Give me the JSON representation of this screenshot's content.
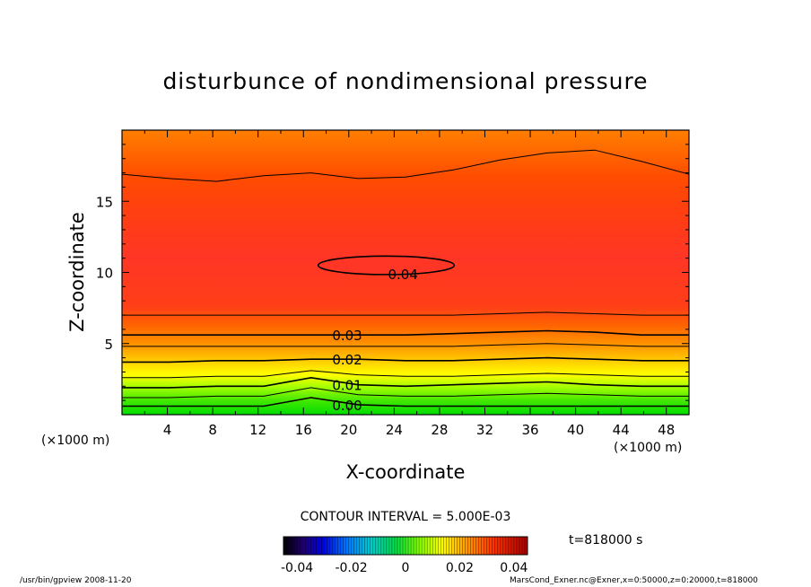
{
  "chart_data": {
    "type": "heatmap",
    "title": "disturbunce of nondimensional pressure",
    "xlabel": "X-coordinate",
    "ylabel": "Z-coordinate",
    "x_unit": "(×1000 m)",
    "x_unit_left": "(×1000 m)",
    "xlim": [
      0,
      50
    ],
    "ylim": [
      0,
      20
    ],
    "x_ticks": [
      4,
      8,
      12,
      16,
      20,
      24,
      28,
      32,
      36,
      40,
      44,
      48
    ],
    "y_ticks": [
      5,
      10,
      15
    ],
    "contour_interval_label": "CONTOUR INTERVAL = 5.000E-03",
    "time_label": "t=818000 s",
    "colorbar": {
      "range": [
        -0.045,
        0.045
      ],
      "tick_labels": [
        "-0.04",
        "-0.02",
        "0",
        "0.02",
        "0.04"
      ],
      "tick_values": [
        -0.04,
        -0.02,
        0,
        0.02,
        0.04
      ]
    },
    "contours": [
      {
        "level": 0.0,
        "label": "0.00",
        "z": [
          0.6,
          0.6,
          0.6,
          0.6,
          1.2,
          0.7,
          0.6,
          0.6,
          0.6,
          0.6,
          0.6,
          0.6,
          0.6
        ]
      },
      {
        "level": 0.005,
        "label": "",
        "z": [
          1.2,
          1.2,
          1.3,
          1.3,
          1.9,
          1.4,
          1.3,
          1.3,
          1.4,
          1.5,
          1.4,
          1.3,
          1.3
        ]
      },
      {
        "level": 0.01,
        "label": "0.01",
        "z": [
          1.9,
          1.9,
          2.0,
          2.0,
          2.6,
          2.1,
          2.0,
          2.1,
          2.2,
          2.3,
          2.1,
          2.0,
          2.0
        ]
      },
      {
        "level": 0.015,
        "label": "",
        "z": [
          2.6,
          2.6,
          2.7,
          2.7,
          3.1,
          2.8,
          2.7,
          2.7,
          2.8,
          2.9,
          2.8,
          2.7,
          2.7
        ]
      },
      {
        "level": 0.02,
        "label": "0.02",
        "z": [
          3.7,
          3.7,
          3.8,
          3.8,
          3.9,
          3.9,
          3.8,
          3.8,
          3.9,
          4.0,
          3.9,
          3.8,
          3.8
        ]
      },
      {
        "level": 0.025,
        "label": "",
        "z": [
          4.8,
          4.8,
          4.8,
          4.8,
          4.8,
          4.8,
          4.8,
          4.8,
          4.9,
          5.0,
          4.9,
          4.8,
          4.8
        ]
      },
      {
        "level": 0.03,
        "label": "0.03",
        "z": [
          5.6,
          5.6,
          5.6,
          5.6,
          5.6,
          5.6,
          5.6,
          5.7,
          5.8,
          5.9,
          5.8,
          5.6,
          5.6
        ]
      },
      {
        "level": 0.035,
        "label": "",
        "z": [
          7.0,
          7.0,
          7.0,
          7.0,
          7.0,
          7.0,
          7.0,
          7.0,
          7.1,
          7.2,
          7.1,
          7.0,
          7.0
        ]
      },
      {
        "level": 0.035,
        "label": "",
        "z": [
          16.9,
          16.6,
          16.4,
          16.8,
          17.0,
          16.6,
          16.7,
          17.2,
          17.9,
          18.4,
          18.6,
          17.8,
          16.9
        ]
      }
    ],
    "closed_contours": [
      {
        "level": 0.04,
        "label": "0.04",
        "center": [
          23.3,
          10.5
        ],
        "rx": 6.0,
        "rz": 0.65
      }
    ]
  },
  "footer": {
    "left": "/usr/bin/gpview   2008-11-20",
    "right": "MarsCond_Exner.nc@Exner,x=0:50000,z=0:20000,t=818000"
  }
}
